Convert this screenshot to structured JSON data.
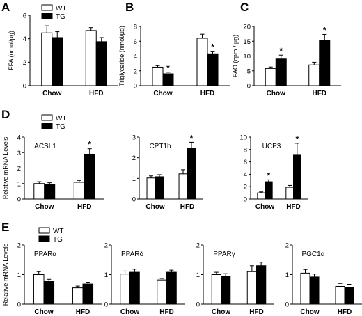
{
  "panel_letters": [
    "A",
    "B",
    "C",
    "D",
    "E"
  ],
  "legend": {
    "wt": "WT",
    "tg": "TG",
    "wt_color": "#ffffff",
    "tg_color": "#000000"
  },
  "star": "*",
  "chart_data": [
    {
      "id": "A",
      "type": "bar",
      "ylabel": "FFA (nmol/μg)",
      "ylim": [
        0,
        6
      ],
      "yticks": [
        0,
        2,
        4,
        6
      ],
      "categories": [
        "Chow",
        "HFD"
      ],
      "series": [
        {
          "name": "WT",
          "values": [
            4.5,
            4.7
          ],
          "errors": [
            0.6,
            0.25
          ]
        },
        {
          "name": "TG",
          "values": [
            4.1,
            3.75
          ],
          "errors": [
            0.5,
            0.35
          ]
        }
      ],
      "significant": []
    },
    {
      "id": "B",
      "type": "bar",
      "ylabel": "Triglyceride (nmol/μg)",
      "ylim": [
        0,
        8
      ],
      "yticks": [
        0,
        2,
        4,
        6,
        8
      ],
      "categories": [
        "Chow",
        "HFD"
      ],
      "series": [
        {
          "name": "WT",
          "values": [
            2.5,
            6.4
          ],
          "errors": [
            0.2,
            0.55
          ]
        },
        {
          "name": "TG",
          "values": [
            1.6,
            4.3
          ],
          "errors": [
            0.2,
            0.35
          ]
        }
      ],
      "significant": [
        [
          1,
          0
        ],
        [
          1,
          1
        ]
      ]
    },
    {
      "id": "C",
      "type": "bar",
      "ylabel": "FAO (cpm / μg)",
      "ylim": [
        0,
        20
      ],
      "yticks": [
        0,
        5,
        10,
        15,
        20
      ],
      "categories": [
        "Chow",
        "HFD"
      ],
      "series": [
        {
          "name": "WT",
          "values": [
            5.8,
            7.0
          ],
          "errors": [
            0.5,
            0.9
          ]
        },
        {
          "name": "TG",
          "values": [
            9.0,
            15.3
          ],
          "errors": [
            1.3,
            2.0
          ]
        }
      ],
      "significant": [
        [
          1,
          0
        ],
        [
          1,
          1
        ]
      ]
    },
    {
      "id": "D1",
      "type": "bar",
      "title": "ACSL1",
      "ylabel": "Relative mRNA Levels",
      "ylim": [
        0,
        4
      ],
      "yticks": [
        0,
        1,
        2,
        3,
        4
      ],
      "categories": [
        "Chow",
        "HFD"
      ],
      "series": [
        {
          "name": "WT",
          "values": [
            1.0,
            1.08
          ],
          "errors": [
            0.12,
            0.12
          ]
        },
        {
          "name": "TG",
          "values": [
            0.95,
            2.9
          ],
          "errors": [
            0.1,
            0.35
          ]
        }
      ],
      "significant": [
        [
          1,
          1
        ]
      ]
    },
    {
      "id": "D2",
      "type": "bar",
      "title": "CPT1b",
      "ylabel": "",
      "ylim": [
        0,
        3
      ],
      "yticks": [
        0,
        1,
        2,
        3
      ],
      "categories": [
        "Chow",
        "HFD"
      ],
      "series": [
        {
          "name": "WT",
          "values": [
            1.02,
            1.22
          ],
          "errors": [
            0.1,
            0.2
          ]
        },
        {
          "name": "TG",
          "values": [
            1.08,
            2.45
          ],
          "errors": [
            0.1,
            0.3
          ]
        }
      ],
      "significant": [
        [
          1,
          1
        ]
      ]
    },
    {
      "id": "D3",
      "type": "bar",
      "title": "UCP3",
      "ylabel": "",
      "ylim": [
        0,
        10
      ],
      "yticks": [
        0,
        2,
        4,
        6,
        8,
        10
      ],
      "categories": [
        "Chow",
        "HFD"
      ],
      "series": [
        {
          "name": "WT",
          "values": [
            1.0,
            1.9
          ],
          "errors": [
            0.15,
            0.3
          ]
        },
        {
          "name": "TG",
          "values": [
            2.8,
            7.2
          ],
          "errors": [
            0.3,
            1.8
          ]
        }
      ],
      "significant": [
        [
          1,
          0
        ],
        [
          1,
          1
        ]
      ]
    },
    {
      "id": "E1",
      "type": "bar",
      "title": "PPARα",
      "ylabel": "Relative mRNA Levels",
      "ylim": [
        0,
        2
      ],
      "yticks": [
        0,
        1,
        2
      ],
      "categories": [
        "Chow",
        "HFD"
      ],
      "series": [
        {
          "name": "WT",
          "values": [
            1.0,
            0.55
          ],
          "errors": [
            0.1,
            0.06
          ]
        },
        {
          "name": "TG",
          "values": [
            0.78,
            0.68
          ],
          "errors": [
            0.06,
            0.06
          ]
        }
      ],
      "significant": []
    },
    {
      "id": "E2",
      "type": "bar",
      "title": "PPARδ",
      "ylabel": "",
      "ylim": [
        0,
        2
      ],
      "yticks": [
        0,
        1,
        2
      ],
      "categories": [
        "Chow",
        "HFD"
      ],
      "series": [
        {
          "name": "WT",
          "values": [
            1.02,
            0.82
          ],
          "errors": [
            0.1,
            0.05
          ]
        },
        {
          "name": "TG",
          "values": [
            1.08,
            1.08
          ],
          "errors": [
            0.1,
            0.07
          ]
        }
      ],
      "significant": []
    },
    {
      "id": "E3",
      "type": "bar",
      "title": "PPARγ",
      "ylabel": "",
      "ylim": [
        0,
        2
      ],
      "yticks": [
        0,
        1,
        2
      ],
      "categories": [
        "Chow",
        "HFD"
      ],
      "series": [
        {
          "name": "WT",
          "values": [
            1.0,
            1.1
          ],
          "errors": [
            0.08,
            0.2
          ]
        },
        {
          "name": "TG",
          "values": [
            0.95,
            1.3
          ],
          "errors": [
            0.08,
            0.12
          ]
        }
      ],
      "significant": []
    },
    {
      "id": "E4",
      "type": "bar",
      "title": "PGC1α",
      "ylabel": "",
      "ylim": [
        0,
        2
      ],
      "yticks": [
        0,
        1,
        2
      ],
      "categories": [
        "Chow",
        "HFD"
      ],
      "series": [
        {
          "name": "WT",
          "values": [
            1.05,
            0.6
          ],
          "errors": [
            0.12,
            0.1
          ]
        },
        {
          "name": "TG",
          "values": [
            0.92,
            0.57
          ],
          "errors": [
            0.1,
            0.1
          ]
        }
      ],
      "significant": []
    }
  ]
}
